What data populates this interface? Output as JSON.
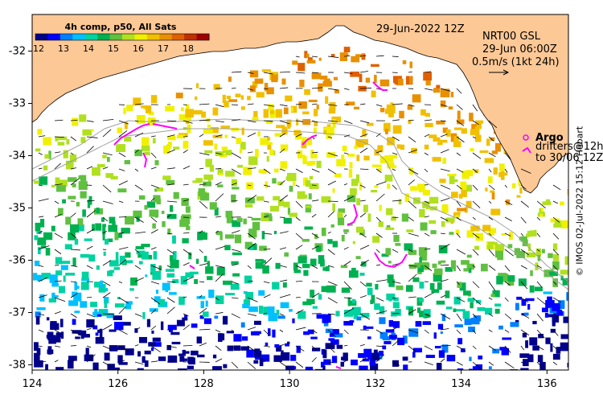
{
  "colorbar": {
    "title": "4h comp, p50, All Sats",
    "ticks": [
      "12",
      "13",
      "14",
      "15",
      "16",
      "17",
      "18"
    ],
    "colors": [
      "#00008b",
      "#0000ff",
      "#0080ff",
      "#00c0ff",
      "#00d2a0",
      "#00b050",
      "#60c040",
      "#b0e020",
      "#f0f000",
      "#f0c000",
      "#e89000",
      "#e06000",
      "#c03000",
      "#a00000"
    ]
  },
  "map": {
    "date_label": "29-Jun-2022 12Z",
    "product": "NRT00 GSL",
    "product_time": "29-Jun 06:00Z",
    "scale_label": "0.5m/s (1kt 24h)",
    "legend": {
      "argo_label": "Argo",
      "drifters_line1": "drifters@12h",
      "drifters_line2": "to 30/06 12Z"
    },
    "x_ticks": [
      "124",
      "126",
      "128",
      "130",
      "132",
      "134",
      "136"
    ],
    "y_ticks": [
      "-32",
      "-33",
      "-34",
      "-35",
      "-36",
      "-37",
      "-38"
    ],
    "lon_range": [
      124,
      136.5
    ],
    "lat_range": [
      -31.3,
      -38.1
    ],
    "credit": "© IMOS 02-Jul-2022 15:12 Hobart"
  },
  "colors": {
    "land": "#fcc896",
    "argo": "#ff00ff",
    "drifter": "#ff00ff",
    "isobath": "#a0a0a0"
  }
}
